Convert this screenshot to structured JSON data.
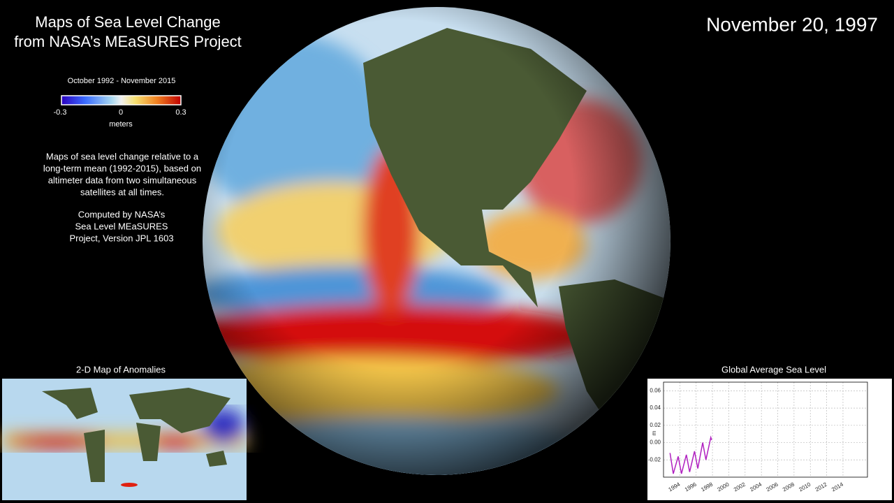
{
  "header": {
    "title_lines": [
      "Maps of Sea Level Change",
      "from NASA’s MEaSURES Project"
    ],
    "date": "November 20, 1997"
  },
  "colorbar": {
    "period": "October 1992 - November 2015",
    "ticks": [
      -0.3,
      0,
      0.3
    ],
    "unit": "meters"
  },
  "description": [
    "Maps of sea level change relative to a",
    "long-term mean (1992-2015), based on",
    "altimeter data from two simultaneous",
    "satellites at all times."
  ],
  "credits": [
    "Computed by NASA’s",
    "Sea Level MEaSURES",
    "Project, Version JPL 1603"
  ],
  "map_inset": {
    "title": "2-D Map of Anomalies"
  },
  "chart_data": {
    "type": "line",
    "title": "Global Average Sea Level",
    "ylabel": "m",
    "color": "#b020c0",
    "x": [
      1992.8,
      1993.2,
      1993.8,
      1994.2,
      1994.8,
      1995.2,
      1995.8,
      1996.2,
      1996.8,
      1997.2,
      1997.8,
      1997.9
    ],
    "values": [
      -0.012,
      -0.036,
      -0.016,
      -0.036,
      -0.014,
      -0.034,
      -0.01,
      -0.03,
      0.0,
      -0.02,
      0.006,
      0.003
    ],
    "xlim": [
      1992,
      2017
    ],
    "ylim": [
      -0.04,
      0.07
    ],
    "xticks": [
      1994,
      1996,
      1998,
      2000,
      2002,
      2004,
      2006,
      2008,
      2010,
      2012,
      2014
    ],
    "yticks": [
      -0.02,
      {
        "value": 0,
        "label": "0.00"
      },
      0.02,
      0.04,
      0.06
    ],
    "grid": true
  }
}
